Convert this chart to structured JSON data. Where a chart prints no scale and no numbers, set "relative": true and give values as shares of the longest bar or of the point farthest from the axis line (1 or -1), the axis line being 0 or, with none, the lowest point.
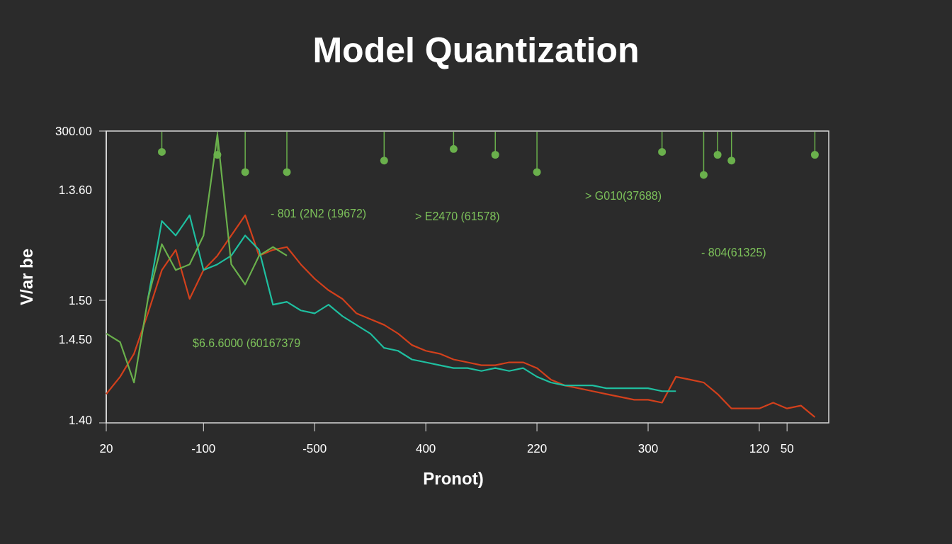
{
  "chart_data": {
    "type": "line",
    "title": "Model Quantization",
    "xlabel": "Pronot)",
    "ylabel": "V/ar be",
    "relative": true,
    "grid": false,
    "categories": [
      "20",
      null,
      null,
      null,
      null,
      null,
      null,
      "-100",
      null,
      null,
      null,
      null,
      null,
      null,
      null,
      "-500",
      null,
      null,
      null,
      null,
      null,
      null,
      null,
      "400",
      null,
      null,
      null,
      null,
      null,
      null,
      null,
      "220",
      null,
      null,
      null,
      null,
      null,
      null,
      null,
      "300",
      null,
      null,
      null,
      null,
      null,
      null,
      null,
      "120",
      null,
      "50",
      null,
      null,
      null
    ],
    "annotations": [
      "300.00",
      "1.3.60",
      "1.50",
      "1.4.50",
      "1.40",
      "- 801 (2N2 (19672)",
      "> E2470 (61578)",
      "> G010(37688)",
      "- 804(61325)",
      "$6.6.6000 (60167379"
    ],
    "series": [
      {
        "color": "#d2401c",
        "values": [
          0.1,
          0.16,
          0.24,
          0.38,
          0.53,
          0.6,
          0.43,
          0.53,
          0.58,
          0.65,
          0.72,
          0.58,
          0.6,
          0.61,
          0.55,
          0.5,
          0.46,
          0.43,
          0.38,
          0.36,
          0.34,
          0.31,
          0.27,
          0.25,
          0.24,
          0.22,
          0.21,
          0.2,
          0.2,
          0.21,
          0.21,
          0.19,
          0.15,
          0.13,
          0.12,
          0.11,
          0.1,
          0.09,
          0.08,
          0.08,
          0.07,
          0.16,
          0.15,
          0.14,
          0.1,
          0.05,
          0.05,
          0.05,
          0.07,
          0.05,
          0.06,
          0.02,
          null
        ]
      },
      {
        "color": "#1fbfa0",
        "values": [
          null,
          null,
          null,
          0.43,
          0.7,
          0.65,
          0.72,
          0.53,
          0.55,
          0.58,
          0.65,
          0.6,
          0.41,
          0.42,
          0.39,
          0.38,
          0.41,
          0.37,
          0.34,
          0.31,
          0.26,
          0.25,
          0.22,
          0.21,
          0.2,
          0.19,
          0.19,
          0.18,
          0.19,
          0.18,
          0.19,
          0.16,
          0.14,
          0.13,
          0.13,
          0.13,
          0.12,
          0.12,
          0.12,
          0.12,
          0.11,
          0.11,
          null,
          null,
          null,
          null,
          null,
          null,
          null,
          null,
          null,
          null,
          null
        ]
      },
      {
        "color": "#6ab04c",
        "values": [
          0.31,
          0.28,
          0.14,
          0.43,
          0.62,
          0.53,
          0.55,
          0.65,
          1,
          0.55,
          0.48,
          0.58,
          0.61,
          0.58,
          null,
          null,
          null,
          null,
          null,
          null,
          null,
          null,
          null,
          null,
          null,
          null,
          null,
          null,
          null,
          null,
          null,
          null,
          null,
          null,
          null,
          null,
          null,
          null,
          null,
          null,
          null,
          null,
          null,
          null,
          null,
          null,
          null,
          null,
          null,
          null,
          null,
          null,
          null
        ]
      },
      {
        "type": "scatter",
        "color": "#6ab04c",
        "marker": "circle",
        "values": [
          null,
          null,
          null,
          null,
          0.94,
          null,
          null,
          null,
          0.93,
          null,
          0.87,
          null,
          null,
          0.87,
          null,
          null,
          null,
          null,
          null,
          null,
          0.91,
          null,
          null,
          null,
          null,
          0.95,
          null,
          null,
          0.93,
          null,
          null,
          0.87,
          null,
          null,
          null,
          null,
          null,
          null,
          null,
          null,
          0.94,
          null,
          null,
          0.86,
          0.93,
          0.91,
          null,
          null,
          null,
          null,
          null,
          0.93,
          null
        ]
      }
    ]
  }
}
